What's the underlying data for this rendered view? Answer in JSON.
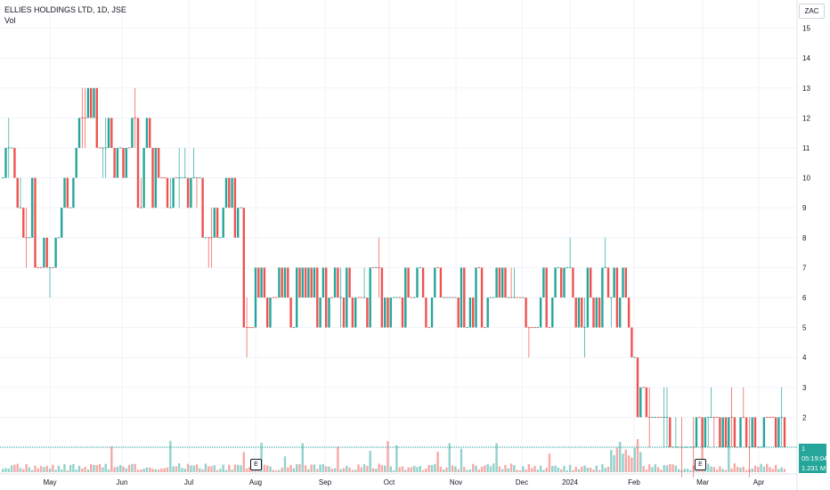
{
  "header": {
    "symbol_line": "ELLIES HOLDINGS LTD, 1D, JSE",
    "volume_label": "Vol"
  },
  "price_axis": {
    "currency": "ZAC",
    "ticks": [
      "15",
      "14",
      "13",
      "12",
      "11",
      "10",
      "9",
      "8",
      "7",
      "6",
      "5",
      "4",
      "3",
      "2",
      "1"
    ]
  },
  "time_axis": {
    "labels": [
      "May",
      "Jun",
      "Jul",
      "Aug",
      "Sep",
      "Oct",
      "Nov",
      "Dec",
      "2024",
      "Feb",
      "Mar",
      "Apr"
    ]
  },
  "tags": {
    "last_price": "1",
    "countdown": "05:19:04",
    "volume": "1.231 M"
  },
  "earnings_marker": "E",
  "colors": {
    "up": "#26a69a",
    "down": "#ef5350",
    "grid": "#f0f3fa",
    "axis_text": "#131722"
  },
  "chart_data": {
    "type": "candlestick",
    "title": "ELLIES HOLDINGS LTD, 1D, JSE",
    "currency": "ZAC",
    "ylim": [
      0.5,
      15.5
    ],
    "grid": true,
    "segments": [
      {
        "period": "late Apr 2023",
        "close_range": [
          9,
          11
        ],
        "color": "mixed"
      },
      {
        "period": "early May 2023",
        "close_range": [
          7,
          10
        ],
        "color": "mostly down"
      },
      {
        "period": "mid May 2023",
        "close_range": [
          6,
          8
        ],
        "color": "mixed"
      },
      {
        "period": "late May 2023",
        "close_range": [
          8,
          14
        ],
        "color": "mostly up"
      },
      {
        "period": "Jun 2023",
        "close_range": [
          9,
          13
        ],
        "color": "mixed"
      },
      {
        "period": "early Jul 2023",
        "close_range": [
          9,
          11
        ],
        "color": "mixed"
      },
      {
        "period": "mid Jul 2023",
        "close_range": [
          7,
          10
        ],
        "color": "mostly down"
      },
      {
        "period": "Aug 2023 - Jan 2024",
        "close_range": [
          5,
          7
        ],
        "color": "mixed"
      },
      {
        "period": "early Feb 2024",
        "close_range": [
          2,
          4
        ],
        "color": "mostly down"
      },
      {
        "period": "Feb - Apr 2024",
        "close_range": [
          1,
          2
        ],
        "color": "mixed"
      }
    ],
    "earnings_events": [
      "Aug 2023",
      "Mar 2024"
    ],
    "last_price": 1,
    "last_volume": "1.231 M"
  }
}
